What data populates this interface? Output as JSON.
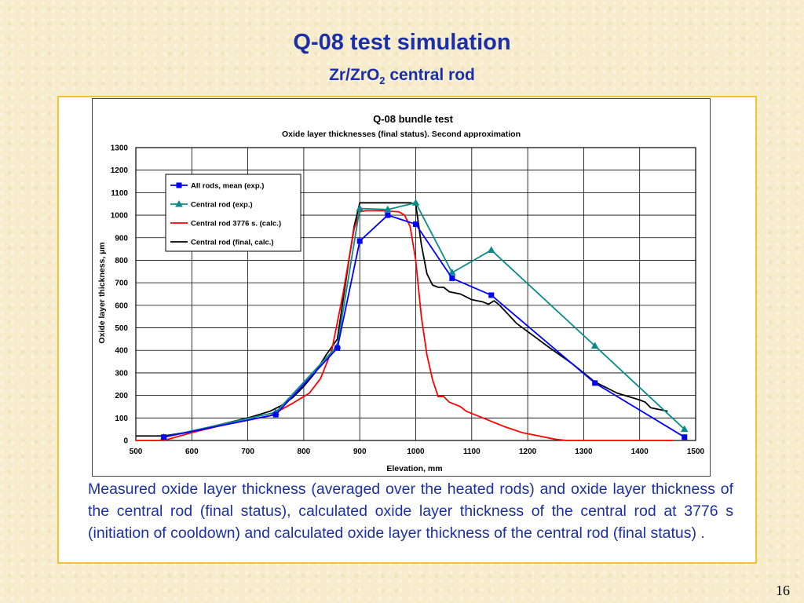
{
  "slide": {
    "title": "Q-08 test simulation",
    "subtitle_main": "Zr/ZrO",
    "subtitle_sub": "2",
    "subtitle_rest": " central rod",
    "caption": "Measured oxide layer thickness (averaged over the heated rods) and oxide layer thickness of the central rod (final status), calculated oxide layer thickness of the central rod at 3776 s (initiation of cooldown) and calculated oxide layer thickness of the central rod (final status) .",
    "page_number": "16"
  },
  "chart_data": {
    "type": "line",
    "title": "Q-08 bundle test",
    "subtitle": "Oxide layer thicknesses (final status). Second approximation",
    "xlabel": "Elevation, mm",
    "ylabel": "Oxide layer thickness, µm",
    "xlim": [
      500,
      1500
    ],
    "ylim": [
      0,
      1300
    ],
    "xticks": [
      500,
      600,
      700,
      800,
      900,
      1000,
      1100,
      1200,
      1300,
      1400,
      1500
    ],
    "yticks": [
      0,
      100,
      200,
      300,
      400,
      500,
      600,
      700,
      800,
      900,
      1000,
      1100,
      1200,
      1300
    ],
    "grid": true,
    "legend_position": "upper-left",
    "series": [
      {
        "name": "All rods, mean (exp.)",
        "color": "#0000ff",
        "marker": "square",
        "x": [
          550,
          750,
          860,
          900,
          950,
          1000,
          1065,
          1135,
          1320,
          1480
        ],
        "y": [
          15,
          115,
          410,
          885,
          1000,
          960,
          720,
          645,
          255,
          15
        ]
      },
      {
        "name": "Central rod (exp.)",
        "color": "#0a8a8a",
        "marker": "triangle",
        "x": [
          550,
          750,
          860,
          900,
          950,
          1000,
          1065,
          1135,
          1320,
          1480
        ],
        "y": [
          15,
          125,
          420,
          1030,
          1025,
          1055,
          745,
          845,
          420,
          50
        ]
      },
      {
        "name": "Central rod 3776 s. (calc.)",
        "color": "#ff0000",
        "marker": "none",
        "x": [
          500,
          550,
          600,
          650,
          700,
          740,
          780,
          810,
          830,
          850,
          870,
          890,
          900,
          910,
          940,
          970,
          980,
          990,
          1000,
          1010,
          1020,
          1030,
          1040,
          1050,
          1060,
          1070,
          1080,
          1090,
          1100,
          1120,
          1140,
          1160,
          1190,
          1220,
          1250,
          1270,
          1300,
          1350,
          1400,
          1460
        ],
        "y": [
          0,
          0,
          35,
          65,
          90,
          110,
          165,
          210,
          275,
          400,
          650,
          940,
          1015,
          1020,
          1020,
          1015,
          1000,
          950,
          800,
          550,
          380,
          270,
          195,
          195,
          170,
          160,
          150,
          130,
          120,
          100,
          80,
          60,
          35,
          20,
          5,
          0,
          0,
          0,
          0,
          0
        ]
      },
      {
        "name": "Central rod (final, calc.)",
        "color": "#000000",
        "marker": "none",
        "x": [
          500,
          550,
          600,
          650,
          700,
          740,
          760,
          780,
          800,
          820,
          840,
          860,
          870,
          880,
          890,
          900,
          950,
          990,
          1000,
          1010,
          1020,
          1030,
          1040,
          1050,
          1060,
          1080,
          1100,
          1120,
          1130,
          1140,
          1150,
          1165,
          1180,
          1210,
          1240,
          1280,
          1320,
          1360,
          1400,
          1410,
          1420,
          1450
        ],
        "y": [
          20,
          20,
          40,
          70,
          100,
          130,
          155,
          190,
          240,
          300,
          380,
          450,
          620,
          790,
          950,
          1055,
          1055,
          1055,
          1050,
          870,
          740,
          690,
          680,
          680,
          660,
          650,
          625,
          615,
          605,
          620,
          600,
          560,
          520,
          465,
          410,
          340,
          260,
          210,
          180,
          170,
          145,
          130
        ]
      }
    ]
  }
}
